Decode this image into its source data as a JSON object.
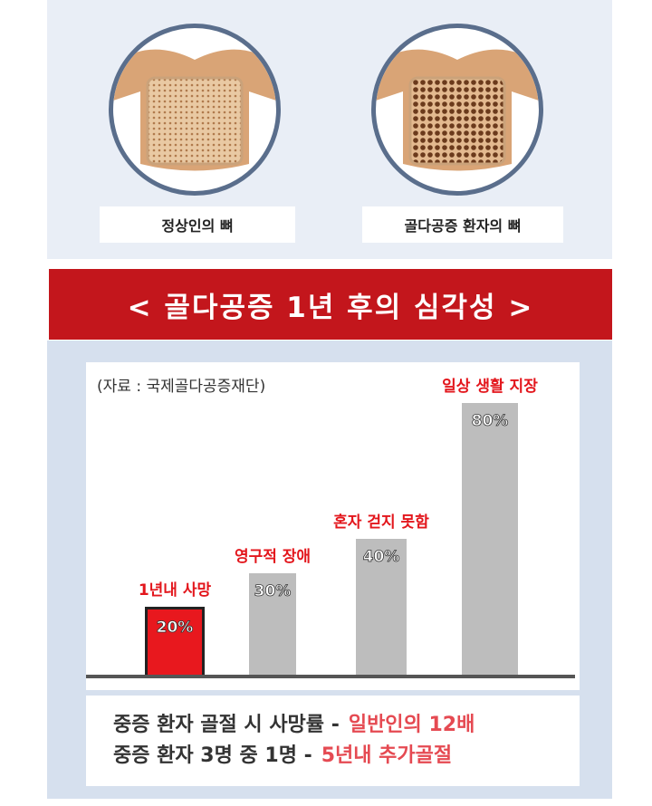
{
  "images": [
    {
      "label": "정상인의 뼈"
    },
    {
      "label": "골다공증 환자의 뼈"
    }
  ],
  "banner": {
    "title": "< 골다공증 1년 후의 심각성 >"
  },
  "chart_data": {
    "type": "bar",
    "source": "(자료 : 국제골다공증재단)",
    "categories": [
      "1년내 사망",
      "영구적 장애",
      "혼자 걷지 못함",
      "일상 생활 지장"
    ],
    "values": [
      20,
      30,
      40,
      80
    ],
    "value_labels": [
      "20%",
      "30%",
      "40%",
      "80%"
    ],
    "highlight_color": "#e8181e",
    "bar_color": "#bdbdbd",
    "ylim": [
      0,
      80
    ]
  },
  "notes": [
    {
      "text": "중증 환자 골절 시 사망률 -",
      "highlight": "일반인의 12배"
    },
    {
      "text": "중증 환자 3명 중 1명 -",
      "highlight": "5년내 추가골절"
    }
  ]
}
